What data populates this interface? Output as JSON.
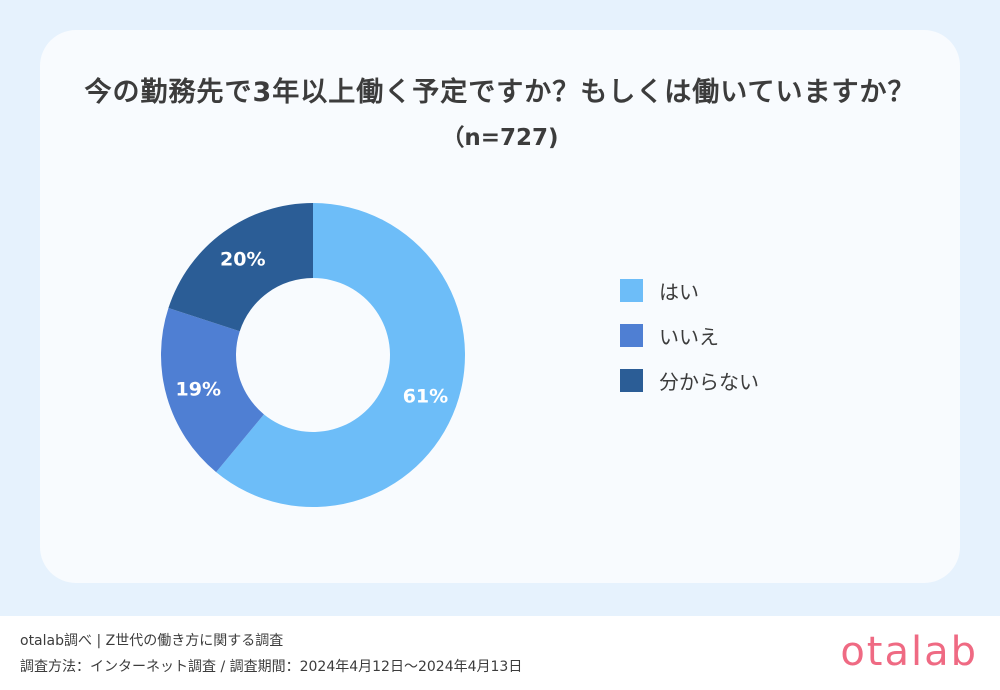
{
  "chart_data": {
    "type": "pie",
    "title": "今の勤務先で3年以上働く予定ですか？もしくは働いていますか？",
    "subtitle": "（n=727)",
    "categories": [
      "はい",
      "いいえ",
      "分からない"
    ],
    "values": [
      61,
      19,
      20
    ],
    "value_labels": [
      "61%",
      "19%",
      "20%"
    ],
    "colors": [
      "#6dbdf8",
      "#4f7fd3",
      "#2b5d96"
    ],
    "legend_position": "right",
    "donut": true
  },
  "footer": {
    "source": "otalab調べ | Z世代の働き方に関する調査",
    "method": "調査方法：インターネット調査 / 調査期間：2024年4月12日〜2024年4月13日",
    "logo": "otalab"
  }
}
